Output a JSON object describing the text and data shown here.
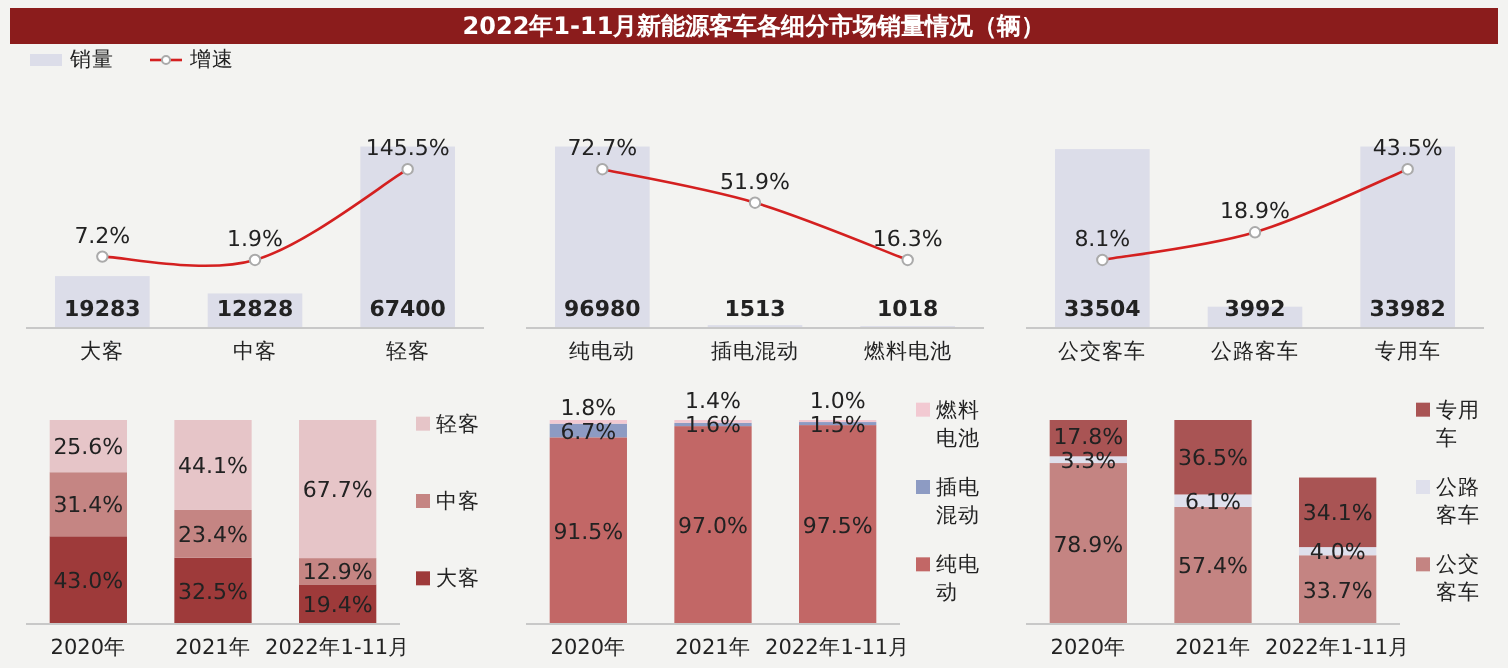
{
  "chart_data": [
    {
      "type": "bar",
      "title": "2022年1-11月新能源客车各细分市场销量情况（辆）",
      "categories": [
        "大客",
        "中客",
        "轻客"
      ],
      "legend": "top left",
      "marker": "circle",
      "series": [
        {
          "name": "销量",
          "color": "#dcdde9",
          "values": [
            19283,
            12828,
            67400
          ],
          "value_labels": [
            "19283",
            "12828",
            "67400"
          ]
        },
        {
          "name": "增速",
          "type": "line",
          "axis": "y2",
          "color": "#d42020",
          "values": [
            7.2,
            1.9,
            145.5
          ],
          "value_labels": [
            "7.2%",
            "1.9%",
            "145.5%"
          ]
        }
      ]
    },
    {
      "type": "bar",
      "categories": [
        "纯电动",
        "插电混动",
        "燃料电池"
      ],
      "marker": "circle",
      "series": [
        {
          "color": "#dcdde9",
          "values": [
            96980,
            1513,
            1018
          ],
          "value_labels": [
            "96980",
            "1513",
            "1018"
          ]
        },
        {
          "type": "line",
          "axis": "y2",
          "color": "#d42020",
          "values": [
            72.7,
            51.9,
            16.3
          ],
          "value_labels": [
            "72.7%",
            "51.9%",
            "16.3%"
          ]
        }
      ]
    },
    {
      "type": "bar",
      "categories": [
        "公交客车",
        "公路客车",
        "专用车"
      ],
      "marker": "circle",
      "series": [
        {
          "color": "#dcdde9",
          "values": [
            33504,
            3992,
            33982
          ],
          "value_labels": [
            "33504",
            "3992",
            "33982"
          ]
        },
        {
          "type": "line",
          "axis": "y2",
          "color": "#d42020",
          "values": [
            8.1,
            18.9,
            43.5
          ],
          "value_labels": [
            "8.1%",
            "18.9%",
            "43.5%"
          ]
        }
      ]
    },
    {
      "type": "bar",
      "stacked": true,
      "legend": "right",
      "categories": [
        "2020年",
        "2021年",
        "2022年1-11月"
      ],
      "series": [
        {
          "name": "大客",
          "color": "#9e3a3a",
          "values": [
            43.0,
            32.5,
            19.4
          ],
          "value_labels": [
            "43.0%",
            "32.5%",
            "19.4%"
          ]
        },
        {
          "name": "中客",
          "color": "#c58583",
          "values": [
            31.4,
            23.4,
            12.9
          ],
          "value_labels": [
            "31.4%",
            "23.4%",
            "12.9%"
          ]
        },
        {
          "name": "轻客",
          "color": "#e6c5c8",
          "values": [
            25.6,
            44.1,
            67.7
          ],
          "value_labels": [
            "25.6%",
            "44.1%",
            "67.7%"
          ]
        }
      ]
    },
    {
      "type": "bar",
      "stacked": true,
      "legend": "right",
      "categories": [
        "2020年",
        "2021年",
        "2022年1-11月"
      ],
      "series": [
        {
          "name": "纯电动",
          "color": "#c26766",
          "values": [
            91.5,
            97.0,
            97.5
          ],
          "value_labels": [
            "91.5%",
            "97.0%",
            "97.5%"
          ]
        },
        {
          "name": "插电混动",
          "color": "#8d9bc3",
          "values": [
            6.7,
            1.6,
            1.5
          ],
          "value_labels": [
            "6.7%",
            "1.6%",
            "1.5%"
          ]
        },
        {
          "name": "燃料电池",
          "color": "#f2c9d2",
          "values": [
            1.8,
            1.4,
            1.0
          ],
          "value_labels": [
            "1.8%",
            "1.4%",
            "1.0%"
          ]
        }
      ]
    },
    {
      "type": "bar",
      "stacked": true,
      "legend": "right",
      "categories": [
        "2020年",
        "2021年",
        "2022年1-11月"
      ],
      "series": [
        {
          "name": "公交客车",
          "color": "#c48482",
          "values": [
            78.9,
            57.4,
            33.7
          ],
          "value_labels": [
            "78.9%",
            "57.4%",
            "33.7%"
          ]
        },
        {
          "name": "公路客车",
          "color": "#dfe0ec",
          "values": [
            3.3,
            6.1,
            4.0
          ],
          "value_labels": [
            "3.3%",
            "6.1%",
            "4.0%"
          ]
        },
        {
          "name": "专用车",
          "color": "#a95454",
          "values": [
            17.8,
            36.5,
            34.1
          ],
          "value_labels": [
            "17.8%",
            "36.5%",
            "34.1%"
          ]
        }
      ]
    }
  ]
}
